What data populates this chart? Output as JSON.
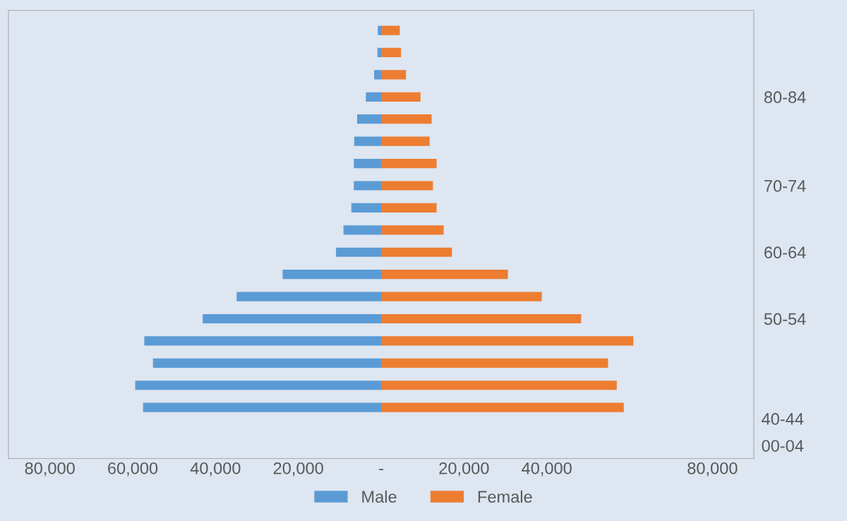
{
  "chart_data": {
    "type": "bar",
    "orientation": "horizontal",
    "stacked": true,
    "categories": [
      null,
      null,
      null,
      "80-84",
      null,
      null,
      null,
      "70-74",
      null,
      null,
      "60-64",
      null,
      null,
      "50-54",
      null,
      null,
      null,
      null
    ],
    "series": [
      {
        "name": "Male",
        "color": "#5b9bd5",
        "values": [
          -800,
          -900,
          -1700,
          -3700,
          -5800,
          -6500,
          -6600,
          -6600,
          -7200,
          -9100,
          -10900,
          -23800,
          -34900,
          -43100,
          -57200,
          -55100,
          -59400,
          -57500
        ]
      },
      {
        "name": "Female",
        "color": "#ed7d31",
        "values": [
          4500,
          4800,
          6000,
          9500,
          12200,
          11700,
          13400,
          12500,
          13400,
          15100,
          17100,
          30600,
          38800,
          48300,
          60900,
          54800,
          56900,
          58600
        ]
      }
    ],
    "xlim": [
      -90000,
      90000
    ],
    "xticks": [
      {
        "value": -80000,
        "label": "80,000"
      },
      {
        "value": -60000,
        "label": "60,000"
      },
      {
        "value": -40000,
        "label": "40,000"
      },
      {
        "value": -20000,
        "label": "20,000"
      },
      {
        "value": 0,
        "label": "-"
      },
      {
        "value": 20000,
        "label": "20,000"
      },
      {
        "value": 40000,
        "label": "40,000"
      },
      {
        "value": 80000,
        "label": "80,000"
      }
    ],
    "annotations": [
      "40-44",
      "00-04"
    ],
    "grid": false,
    "legend": "bottom"
  }
}
